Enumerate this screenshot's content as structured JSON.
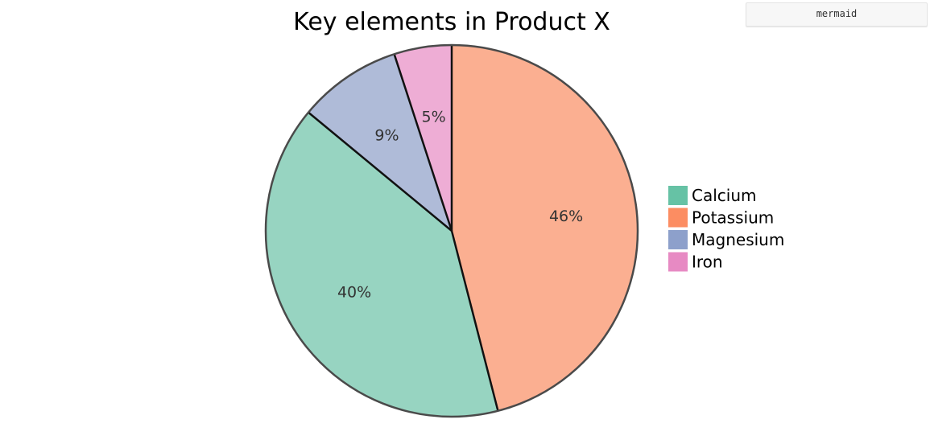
{
  "badge": {
    "label": "mermaid"
  },
  "colors": {
    "outline": "#4a4a4a",
    "divider": "#111111"
  },
  "chart_data": {
    "type": "pie",
    "title": "Key elements in Product X",
    "legend_position": "right",
    "start_angle_deg": 0,
    "direction": "clockwise",
    "slices": [
      {
        "name": "Potassium",
        "value": 46,
        "label": "46%",
        "color": "#fc8d62",
        "fill": "#fbaf91"
      },
      {
        "name": "Calcium",
        "value": 40,
        "label": "40%",
        "color": "#66c2a5",
        "fill": "#97d4c1"
      },
      {
        "name": "Magnesium",
        "value": 9,
        "label": "9%",
        "color": "#8da0cb",
        "fill": "#afbbd8"
      },
      {
        "name": "Iron",
        "value": 5,
        "label": "5%",
        "color": "#e78ac3",
        "fill": "#eeadd5"
      }
    ],
    "legend": [
      {
        "name": "Calcium",
        "color": "#66c2a5"
      },
      {
        "name": "Potassium",
        "color": "#fc8d62"
      },
      {
        "name": "Magnesium",
        "color": "#8da0cb"
      },
      {
        "name": "Iron",
        "color": "#e78ac3"
      }
    ]
  }
}
